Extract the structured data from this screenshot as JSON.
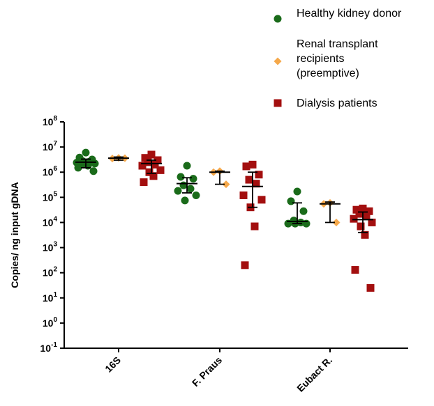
{
  "chart_data": {
    "type": "scatter",
    "title": "",
    "xlabel": "",
    "ylabel": "Copies/ ng input gDNA",
    "yscale": "log",
    "ylim": [
      0.1,
      100000000
    ],
    "y_ticks": [
      {
        "value": 0.1,
        "base": "10",
        "exp": "-1"
      },
      {
        "value": 1,
        "base": "10",
        "exp": "0"
      },
      {
        "value": 10,
        "base": "10",
        "exp": "1"
      },
      {
        "value": 100,
        "base": "10",
        "exp": "2"
      },
      {
        "value": 1000,
        "base": "10",
        "exp": "3"
      },
      {
        "value": 10000,
        "base": "10",
        "exp": "4"
      },
      {
        "value": 100000,
        "base": "10",
        "exp": "5"
      },
      {
        "value": 1000000,
        "base": "10",
        "exp": "6"
      },
      {
        "value": 10000000,
        "base": "10",
        "exp": "7"
      },
      {
        "value": 100000000,
        "base": "10",
        "exp": "8"
      }
    ],
    "categories": [
      "16S",
      "F. Praus",
      "Eubact R."
    ],
    "legend_position": "top-right",
    "series": [
      {
        "name": "Healthy kidney donor",
        "color": "#1a6b1a",
        "marker": "circle",
        "groups": [
          {
            "points": [
              6000000,
              3800000,
              3200000,
              2800000,
              2600000,
              2400000,
              2200000,
              2000000,
              1800000,
              1500000,
              1100000
            ],
            "median": 2500000,
            "err_low": 1500000,
            "err_high": 3300000
          },
          {
            "points": [
              1800000,
              650000,
              550000,
              300000,
              220000,
              180000,
              120000,
              75000
            ],
            "median": 350000,
            "err_low": 150000,
            "err_high": 600000
          },
          {
            "points": [
              170000,
              70000,
              28000,
              12000,
              10000,
              9000,
              9000,
              9000
            ],
            "median": 11000,
            "err_low": 9000,
            "err_high": 60000
          }
        ]
      },
      {
        "name": "Renal transplant recipients (preemptive)",
        "color": "#f5a84a",
        "marker": "diamond",
        "groups": [
          {
            "points": [
              3700000,
              3500000,
              3600000
            ],
            "median": 3600000,
            "err_low": 3000000,
            "err_high": 4000000
          },
          {
            "points": [
              1100000,
              1000000,
              330000
            ],
            "median": 1000000,
            "err_low": 330000,
            "err_high": 1100000
          },
          {
            "points": [
              60000,
              55000,
              10000
            ],
            "median": 55000,
            "err_low": 10000,
            "err_high": 65000
          }
        ]
      },
      {
        "name": "Dialysis patients",
        "color": "#a30f0f",
        "marker": "square",
        "groups": [
          {
            "points": [
              5000000,
              3700000,
              3000000,
              2500000,
              2000000,
              1800000,
              1200000,
              1000000,
              700000,
              400000
            ],
            "median": 2200000,
            "err_low": 900000,
            "err_high": 3000000
          },
          {
            "points": [
              2000000,
              1700000,
              800000,
              500000,
              350000,
              120000,
              80000,
              40000,
              7000,
              200
            ],
            "median": 270000,
            "err_low": 40000,
            "err_high": 1000000
          },
          {
            "points": [
              36000,
              32000,
              28000,
              22000,
              18000,
              14000,
              10000,
              7000,
              3200,
              130,
              25
            ],
            "median": 13000,
            "err_low": 4000,
            "err_high": 26000
          }
        ]
      }
    ]
  }
}
